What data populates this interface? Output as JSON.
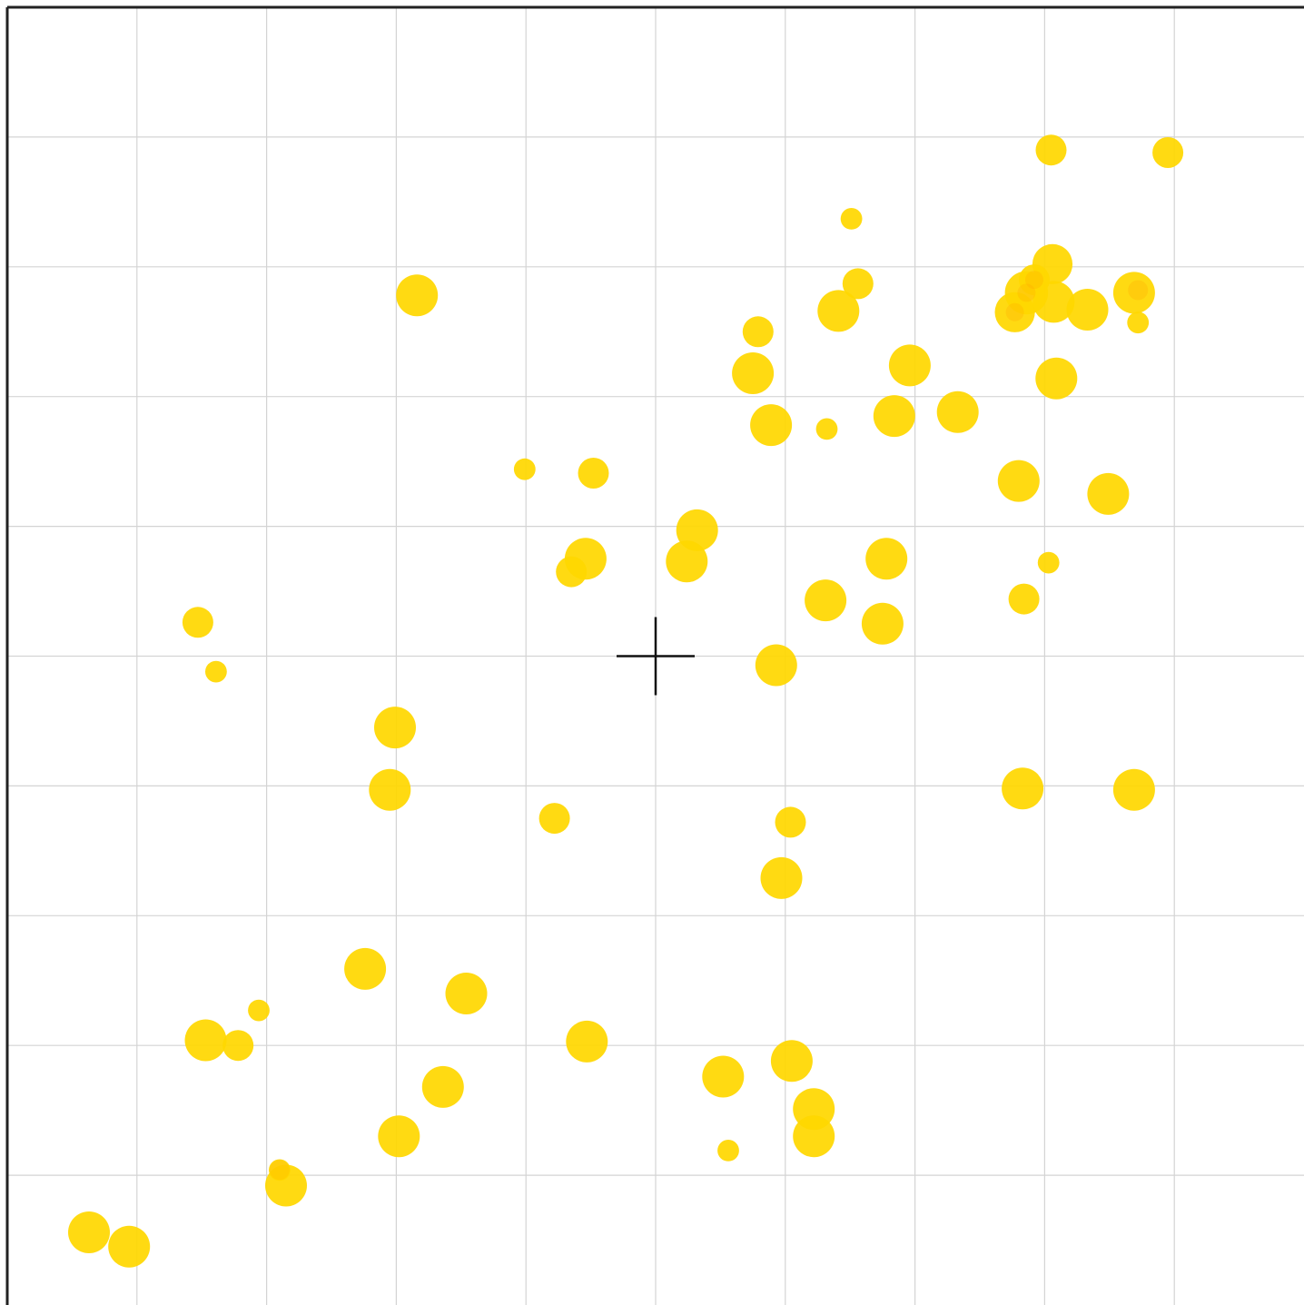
{
  "chart_data": {
    "type": "scatter",
    "title": "",
    "xlabel": "",
    "ylabel": "",
    "xlim": [
      0,
      10
    ],
    "ylim": [
      0,
      10
    ],
    "grid": true,
    "crosshair": [
      5,
      5
    ],
    "colors": {
      "point": "#FFD700",
      "overlap": "#FFA500",
      "grid": "#d4d4d4",
      "axis": "#222222",
      "crosshair": "#111111"
    },
    "points": [
      {
        "x": 8.05,
        "y": 8.9,
        "size": 1.0
      },
      {
        "x": 8.95,
        "y": 8.88,
        "size": 1.0
      },
      {
        "x": 6.51,
        "y": 8.37,
        "size": 0.7
      },
      {
        "x": 8.06,
        "y": 8.02,
        "size": 1.3
      },
      {
        "x": 7.92,
        "y": 7.9,
        "size": 1.0
      },
      {
        "x": 7.86,
        "y": 7.8,
        "size": 1.4
      },
      {
        "x": 7.77,
        "y": 7.65,
        "size": 1.3
      },
      {
        "x": 8.07,
        "y": 7.73,
        "size": 1.35
      },
      {
        "x": 8.33,
        "y": 7.67,
        "size": 1.35
      },
      {
        "x": 8.69,
        "y": 7.8,
        "size": 1.35
      },
      {
        "x": 8.72,
        "y": 7.57,
        "size": 0.7
      },
      {
        "x": 3.16,
        "y": 7.78,
        "size": 1.35
      },
      {
        "x": 6.56,
        "y": 7.87,
        "size": 1.0
      },
      {
        "x": 6.41,
        "y": 7.66,
        "size": 1.35
      },
      {
        "x": 5.79,
        "y": 7.5,
        "size": 1.0
      },
      {
        "x": 5.75,
        "y": 7.18,
        "size": 1.35
      },
      {
        "x": 6.96,
        "y": 7.24,
        "size": 1.35
      },
      {
        "x": 8.09,
        "y": 7.14,
        "size": 1.35
      },
      {
        "x": 5.89,
        "y": 6.78,
        "size": 1.35
      },
      {
        "x": 6.32,
        "y": 6.75,
        "size": 0.7
      },
      {
        "x": 6.84,
        "y": 6.85,
        "size": 1.35
      },
      {
        "x": 7.33,
        "y": 6.88,
        "size": 1.35
      },
      {
        "x": 3.99,
        "y": 6.44,
        "size": 0.7
      },
      {
        "x": 4.52,
        "y": 6.41,
        "size": 1.0
      },
      {
        "x": 7.8,
        "y": 6.35,
        "size": 1.35
      },
      {
        "x": 8.49,
        "y": 6.25,
        "size": 1.35
      },
      {
        "x": 5.32,
        "y": 5.97,
        "size": 1.35
      },
      {
        "x": 4.46,
        "y": 5.75,
        "size": 1.35
      },
      {
        "x": 4.35,
        "y": 5.65,
        "size": 1.0
      },
      {
        "x": 5.24,
        "y": 5.73,
        "size": 1.35
      },
      {
        "x": 6.78,
        "y": 5.75,
        "size": 1.35
      },
      {
        "x": 8.03,
        "y": 5.72,
        "size": 0.7
      },
      {
        "x": 6.31,
        "y": 5.43,
        "size": 1.35
      },
      {
        "x": 7.84,
        "y": 5.44,
        "size": 1.0
      },
      {
        "x": 1.47,
        "y": 5.26,
        "size": 1.0
      },
      {
        "x": 6.75,
        "y": 5.25,
        "size": 1.35
      },
      {
        "x": 1.61,
        "y": 4.88,
        "size": 0.7
      },
      {
        "x": 5.93,
        "y": 4.93,
        "size": 1.35
      },
      {
        "x": 2.99,
        "y": 4.45,
        "size": 1.35
      },
      {
        "x": 7.83,
        "y": 3.98,
        "size": 1.35
      },
      {
        "x": 8.69,
        "y": 3.97,
        "size": 1.35
      },
      {
        "x": 2.95,
        "y": 3.97,
        "size": 1.35
      },
      {
        "x": 4.22,
        "y": 3.75,
        "size": 1.0
      },
      {
        "x": 6.04,
        "y": 3.72,
        "size": 1.0
      },
      {
        "x": 5.97,
        "y": 3.29,
        "size": 1.35
      },
      {
        "x": 2.76,
        "y": 2.59,
        "size": 1.35
      },
      {
        "x": 3.54,
        "y": 2.4,
        "size": 1.35
      },
      {
        "x": 1.94,
        "y": 2.27,
        "size": 0.7
      },
      {
        "x": 1.53,
        "y": 2.04,
        "size": 1.35
      },
      {
        "x": 1.78,
        "y": 2.0,
        "size": 1.0
      },
      {
        "x": 4.47,
        "y": 2.03,
        "size": 1.35
      },
      {
        "x": 6.05,
        "y": 1.88,
        "size": 1.35
      },
      {
        "x": 5.52,
        "y": 1.76,
        "size": 1.35
      },
      {
        "x": 6.22,
        "y": 1.51,
        "size": 1.35
      },
      {
        "x": 3.36,
        "y": 1.68,
        "size": 1.35
      },
      {
        "x": 6.22,
        "y": 1.3,
        "size": 1.35
      },
      {
        "x": 3.02,
        "y": 1.3,
        "size": 1.35
      },
      {
        "x": 5.56,
        "y": 1.19,
        "size": 0.7
      },
      {
        "x": 2.1,
        "y": 1.04,
        "size": 0.7
      },
      {
        "x": 2.15,
        "y": 0.92,
        "size": 1.35
      },
      {
        "x": 0.63,
        "y": 0.56,
        "size": 1.35
      },
      {
        "x": 0.94,
        "y": 0.45,
        "size": 1.35
      }
    ]
  }
}
